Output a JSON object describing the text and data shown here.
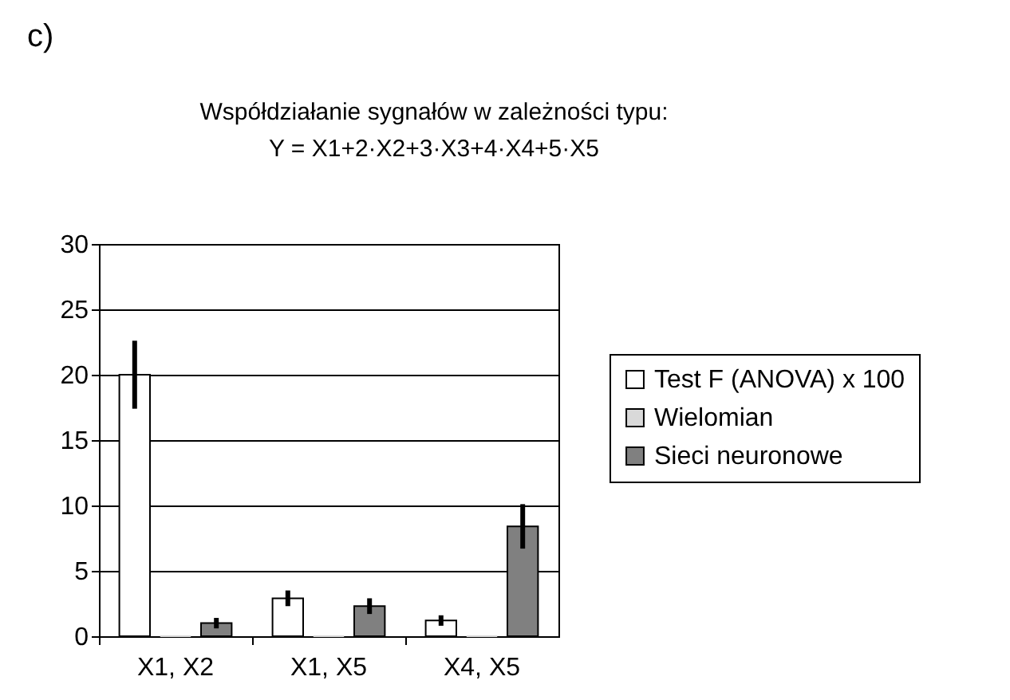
{
  "chart_data": {
    "type": "bar",
    "title": "Współdziałanie sygnałów w zależności typu:",
    "subtitle": "Y = X1+2·X2+3·X3+4·X4+5·X5",
    "annotations": [
      "c)"
    ],
    "categories": [
      "X1, X2",
      "X1, X5",
      "X4, X5"
    ],
    "series": [
      {
        "name": "Test F (ANOVA) x 100",
        "color": "#ffffff",
        "values": [
          20,
          2.9,
          1.2
        ],
        "errors": [
          2.6,
          0.6,
          0.4
        ]
      },
      {
        "name": "Wielomian",
        "color": "#d9d9d9",
        "values": [
          0,
          0,
          0
        ],
        "errors": [
          null,
          null,
          null
        ]
      },
      {
        "name": "Sieci neuronowe",
        "color": "#808080",
        "values": [
          1.0,
          2.3,
          8.4
        ],
        "errors": [
          0.4,
          0.6,
          1.7
        ]
      }
    ],
    "ylim": [
      0,
      30
    ],
    "yticks": [
      0,
      5,
      10,
      15,
      20,
      25,
      30
    ],
    "grid": "y",
    "legend": "right"
  }
}
